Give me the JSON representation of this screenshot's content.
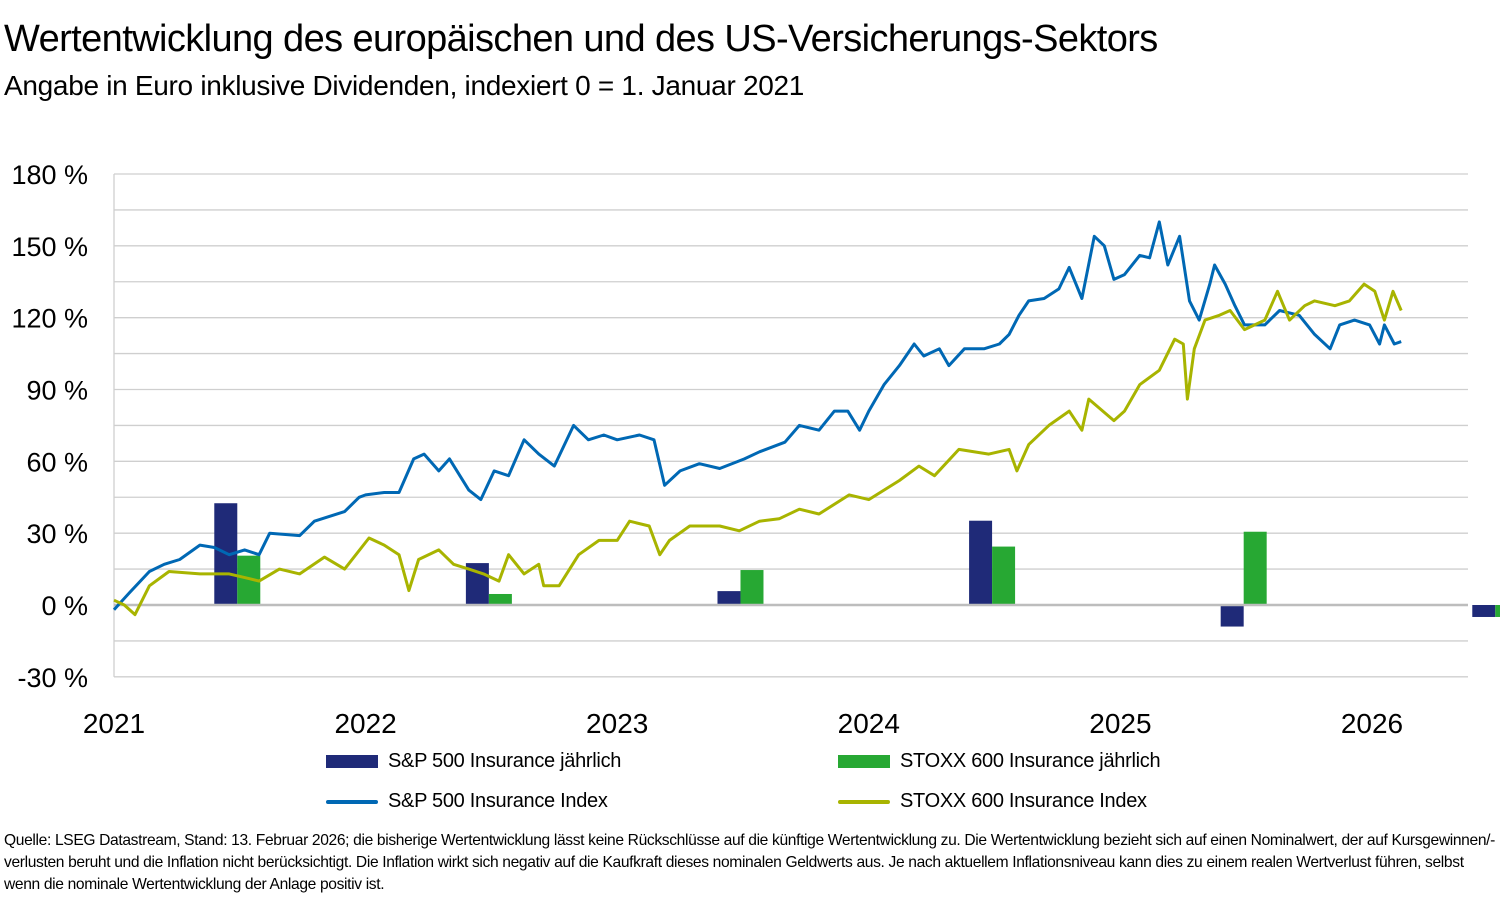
{
  "title": "Wertentwicklung des europäischen und des US-Versicherungs-Sektors",
  "subtitle": "Angabe in Euro inklusive Dividenden, indexiert 0 = 1. Januar 2021",
  "footer": "Quelle: LSEG Datastream, Stand: 13. Februar 2026; die bisherige Wertentwicklung lässt keine Rückschlüsse auf die künftige Wertentwicklung zu. Die Wertentwicklung bezieht sich auf einen Nominalwert, der auf Kursgewinnen/-verlusten beruht und die Inflation nicht berücksichtigt. Die Inflation wirkt sich negativ auf die Kaufkraft dieses nominalen Geldwerts aus. Je nach aktuellem Inflationsniveau kann dies zu einem realen Wertverlust führen, selbst wenn die nominale Wertentwicklung der Anlage positiv ist.",
  "chart_data": {
    "type": "bar+line",
    "ylim": [
      -30,
      180
    ],
    "y_ticks": [
      -30,
      0,
      30,
      60,
      90,
      120,
      150,
      180
    ],
    "y_tick_labels": [
      "-30 %",
      "0 %",
      "30 %",
      "60 %",
      "90 %",
      "120 %",
      "150 %",
      "180 %"
    ],
    "y_minor_grid_step": 15,
    "x_tick_labels": [
      "2021",
      "2022",
      "2023",
      "2024",
      "2025",
      "2026"
    ],
    "grid": true,
    "legend_placement": "bottom",
    "bar_categories": [
      "2021",
      "2022",
      "2023",
      "2024",
      "2025",
      "2026"
    ],
    "bar_series": [
      {
        "name": "S&P 500 Insurance jährlich",
        "color": "#1f2a78",
        "values": [
          42.5,
          17.5,
          5.8,
          35.2,
          -9.0,
          -5.0
        ]
      },
      {
        "name": "STOXX 600 Insurance jährlich",
        "color": "#27a833",
        "values": [
          20.6,
          4.6,
          14.6,
          24.4,
          30.6,
          -5.0
        ]
      }
    ],
    "line_series": [
      {
        "name": "S&P 500 Insurance Index",
        "color": "#0068b4",
        "points": [
          [
            "2021-01-01",
            -2
          ],
          [
            "2021-01-23",
            5
          ],
          [
            "2021-02-22",
            14
          ],
          [
            "2021-03-13",
            17
          ],
          [
            "2021-04-05",
            19
          ],
          [
            "2021-05-04",
            25
          ],
          [
            "2021-05-25",
            24
          ],
          [
            "2021-06-16",
            21
          ],
          [
            "2021-07-08",
            23
          ],
          [
            "2021-07-29",
            21
          ],
          [
            "2021-08-14",
            30
          ],
          [
            "2021-09-27",
            29
          ],
          [
            "2021-10-18",
            35
          ],
          [
            "2021-12-01",
            39
          ],
          [
            "2021-12-22",
            45
          ],
          [
            "2022-01-01",
            46
          ],
          [
            "2022-01-28",
            47
          ],
          [
            "2022-02-19",
            47
          ],
          [
            "2022-03-10",
            61
          ],
          [
            "2022-03-25",
            63
          ],
          [
            "2022-04-16",
            56
          ],
          [
            "2022-05-01",
            61
          ],
          [
            "2022-05-29",
            48
          ],
          [
            "2022-06-16",
            44
          ],
          [
            "2022-07-05",
            56
          ],
          [
            "2022-07-26",
            54
          ],
          [
            "2022-08-18",
            69
          ],
          [
            "2022-09-09",
            63
          ],
          [
            "2022-10-01",
            58
          ],
          [
            "2022-10-29",
            75
          ],
          [
            "2022-11-20",
            69
          ],
          [
            "2022-12-12",
            71
          ],
          [
            "2023-01-01",
            69
          ],
          [
            "2023-02-03",
            71
          ],
          [
            "2023-02-24",
            69
          ],
          [
            "2023-03-09",
            50
          ],
          [
            "2023-04-01",
            56
          ],
          [
            "2023-04-29",
            59
          ],
          [
            "2023-05-28",
            57
          ],
          [
            "2023-07-03",
            61
          ],
          [
            "2023-07-25",
            64
          ],
          [
            "2023-09-01",
            68
          ],
          [
            "2023-09-22",
            75
          ],
          [
            "2023-10-20",
            73
          ],
          [
            "2023-11-12",
            81
          ],
          [
            "2023-12-01",
            81
          ],
          [
            "2023-12-18",
            73
          ],
          [
            "2024-01-01",
            81
          ],
          [
            "2024-01-23",
            92
          ],
          [
            "2024-02-15",
            100
          ],
          [
            "2024-03-06",
            109
          ],
          [
            "2024-03-20",
            104
          ],
          [
            "2024-04-12",
            107
          ],
          [
            "2024-04-26",
            100
          ],
          [
            "2024-05-18",
            107
          ],
          [
            "2024-06-16",
            107
          ],
          [
            "2024-07-08",
            109
          ],
          [
            "2024-07-22",
            113
          ],
          [
            "2024-08-06",
            121
          ],
          [
            "2024-08-20",
            127
          ],
          [
            "2024-09-12",
            128
          ],
          [
            "2024-10-03",
            132
          ],
          [
            "2024-10-18",
            141
          ],
          [
            "2024-11-06",
            128
          ],
          [
            "2024-11-24",
            154
          ],
          [
            "2024-12-08",
            150
          ],
          [
            "2024-12-22",
            136
          ],
          [
            "2025-01-07",
            138
          ],
          [
            "2025-01-29",
            146
          ],
          [
            "2025-02-13",
            145
          ],
          [
            "2025-02-27",
            160
          ],
          [
            "2025-03-09",
            142
          ],
          [
            "2025-03-26",
            154
          ],
          [
            "2025-04-10",
            127
          ],
          [
            "2025-04-24",
            119
          ],
          [
            "2025-05-09",
            134
          ],
          [
            "2025-05-16",
            142
          ],
          [
            "2025-06-01",
            134
          ],
          [
            "2025-06-15",
            125
          ],
          [
            "2025-06-29",
            117
          ],
          [
            "2025-07-28",
            117
          ],
          [
            "2025-08-19",
            123
          ],
          [
            "2025-09-17",
            121
          ],
          [
            "2025-10-09",
            113
          ],
          [
            "2025-11-01",
            107
          ],
          [
            "2025-11-15",
            117
          ],
          [
            "2025-12-06",
            119
          ],
          [
            "2025-12-28",
            117
          ],
          [
            "2026-01-12",
            109
          ],
          [
            "2026-01-19",
            117
          ],
          [
            "2026-02-03",
            109
          ],
          [
            "2026-02-13",
            110
          ]
        ]
      },
      {
        "name": "STOXX 600 Insurance Index",
        "color": "#a8b400",
        "points": [
          [
            "2021-01-01",
            2
          ],
          [
            "2021-01-16",
            0
          ],
          [
            "2021-02-01",
            -4
          ],
          [
            "2021-02-22",
            8
          ],
          [
            "2021-03-20",
            14
          ],
          [
            "2021-05-04",
            13
          ],
          [
            "2021-06-16",
            13
          ],
          [
            "2021-07-15",
            11
          ],
          [
            "2021-07-29",
            10
          ],
          [
            "2021-08-28",
            15
          ],
          [
            "2021-09-27",
            13
          ],
          [
            "2021-11-02",
            20
          ],
          [
            "2021-12-01",
            15
          ],
          [
            "2022-01-06",
            28
          ],
          [
            "2022-01-28",
            25
          ],
          [
            "2022-02-19",
            21
          ],
          [
            "2022-03-03",
            6
          ],
          [
            "2022-03-17",
            19
          ],
          [
            "2022-04-16",
            23
          ],
          [
            "2022-05-07",
            17
          ],
          [
            "2022-05-29",
            15
          ],
          [
            "2022-06-20",
            13
          ],
          [
            "2022-07-12",
            10
          ],
          [
            "2022-07-26",
            21
          ],
          [
            "2022-08-18",
            13
          ],
          [
            "2022-09-09",
            17
          ],
          [
            "2022-09-16",
            8
          ],
          [
            "2022-10-08",
            8
          ],
          [
            "2022-11-06",
            21
          ],
          [
            "2022-12-05",
            27
          ],
          [
            "2023-01-01",
            27
          ],
          [
            "2023-01-19",
            35
          ],
          [
            "2023-02-17",
            33
          ],
          [
            "2023-03-02",
            21
          ],
          [
            "2023-03-16",
            27
          ],
          [
            "2023-04-15",
            33
          ],
          [
            "2023-05-28",
            33
          ],
          [
            "2023-06-26",
            31
          ],
          [
            "2023-07-25",
            35
          ],
          [
            "2023-08-23",
            36
          ],
          [
            "2023-09-22",
            40
          ],
          [
            "2023-10-20",
            38
          ],
          [
            "2023-12-03",
            46
          ],
          [
            "2024-01-01",
            44
          ],
          [
            "2024-01-23",
            48
          ],
          [
            "2024-02-15",
            52
          ],
          [
            "2024-03-13",
            58
          ],
          [
            "2024-04-05",
            54
          ],
          [
            "2024-05-10",
            65
          ],
          [
            "2024-06-23",
            63
          ],
          [
            "2024-07-22",
            65
          ],
          [
            "2024-08-03",
            56
          ],
          [
            "2024-08-20",
            67
          ],
          [
            "2024-09-19",
            75
          ],
          [
            "2024-10-18",
            81
          ],
          [
            "2024-11-06",
            73
          ],
          [
            "2024-11-16",
            86
          ],
          [
            "2024-12-22",
            77
          ],
          [
            "2025-01-07",
            81
          ],
          [
            "2025-01-29",
            92
          ],
          [
            "2025-02-27",
            98
          ],
          [
            "2025-03-19",
            111
          ],
          [
            "2025-04-01",
            109
          ],
          [
            "2025-04-07",
            86
          ],
          [
            "2025-04-17",
            107
          ],
          [
            "2025-05-02",
            119
          ],
          [
            "2025-05-23",
            121
          ],
          [
            "2025-06-08",
            123
          ],
          [
            "2025-06-29",
            115
          ],
          [
            "2025-07-28",
            119
          ],
          [
            "2025-08-16",
            131
          ],
          [
            "2025-09-03",
            119
          ],
          [
            "2025-09-25",
            125
          ],
          [
            "2025-10-09",
            127
          ],
          [
            "2025-11-08",
            125
          ],
          [
            "2025-11-29",
            127
          ],
          [
            "2025-12-20",
            134
          ],
          [
            "2026-01-05",
            131
          ],
          [
            "2026-01-19",
            119
          ],
          [
            "2026-02-01",
            131
          ],
          [
            "2026-02-13",
            123
          ]
        ]
      }
    ]
  }
}
